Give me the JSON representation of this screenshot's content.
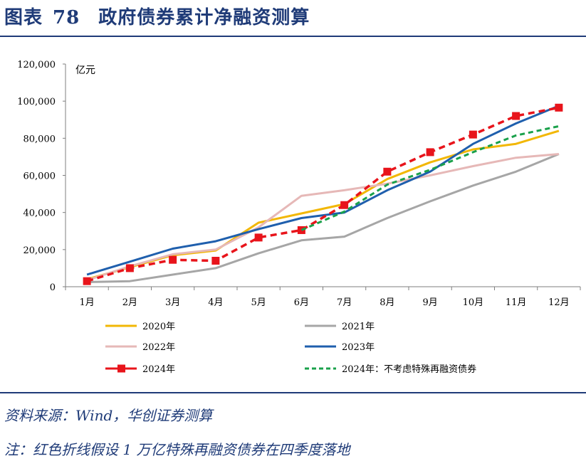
{
  "header": {
    "figure_label": "图表",
    "figure_number": "78",
    "title": "政府债券累计净融资测算"
  },
  "chart_data": {
    "type": "line",
    "unit_label": "亿元",
    "ylim": [
      0,
      120000
    ],
    "yticks": [
      "0",
      "20,000",
      "40,000",
      "60,000",
      "80,000",
      "100,000",
      "120,000"
    ],
    "ytick_values": [
      0,
      20000,
      40000,
      60000,
      80000,
      100000,
      120000
    ],
    "categories": [
      "1月",
      "2月",
      "3月",
      "4月",
      "5月",
      "6月",
      "7月",
      "8月",
      "9月",
      "10月",
      "11月",
      "12月"
    ],
    "legend_position": "bottom",
    "series": [
      {
        "name": "2020年",
        "color": "#f2b705",
        "style": "solid",
        "marker": "none",
        "values": [
          4000,
          10500,
          17000,
          19500,
          34500,
          39500,
          44500,
          58000,
          67000,
          74000,
          77000,
          84000
        ]
      },
      {
        "name": "2021年",
        "color": "#a6a6a6",
        "style": "solid",
        "marker": "none",
        "values": [
          2500,
          3000,
          6500,
          10000,
          18000,
          25000,
          27000,
          37000,
          46000,
          54500,
          62000,
          71500
        ]
      },
      {
        "name": "2022年",
        "color": "#e6b8b7",
        "style": "solid",
        "marker": "none",
        "values": [
          3500,
          11000,
          17500,
          20000,
          32000,
          49000,
          52000,
          55500,
          60000,
          65000,
          69500,
          71500
        ]
      },
      {
        "name": "2023年",
        "color": "#1f5fad",
        "style": "solid",
        "marker": "none",
        "values": [
          6500,
          13500,
          20500,
          24500,
          31000,
          37000,
          40000,
          52000,
          62000,
          77000,
          88000,
          97500
        ]
      },
      {
        "name": "2024年",
        "color": "#e8141b",
        "style": "dashed",
        "marker": "square",
        "values": [
          3000,
          10000,
          14500,
          14000,
          26500,
          30500,
          44000,
          62000,
          72500,
          82000,
          92000,
          96500
        ]
      },
      {
        "name": "2024年：不考虑特殊再融资债券",
        "color": "#1aa14b",
        "style": "dashed",
        "marker": "none",
        "values": [
          null,
          null,
          null,
          null,
          null,
          30500,
          40500,
          55000,
          63000,
          72500,
          81500,
          86500
        ]
      }
    ]
  },
  "footer": {
    "source": "资料来源：Wind，华创证券测算",
    "note": "注：红色折线假设 1 万亿特殊再融资债券在四季度落地"
  }
}
